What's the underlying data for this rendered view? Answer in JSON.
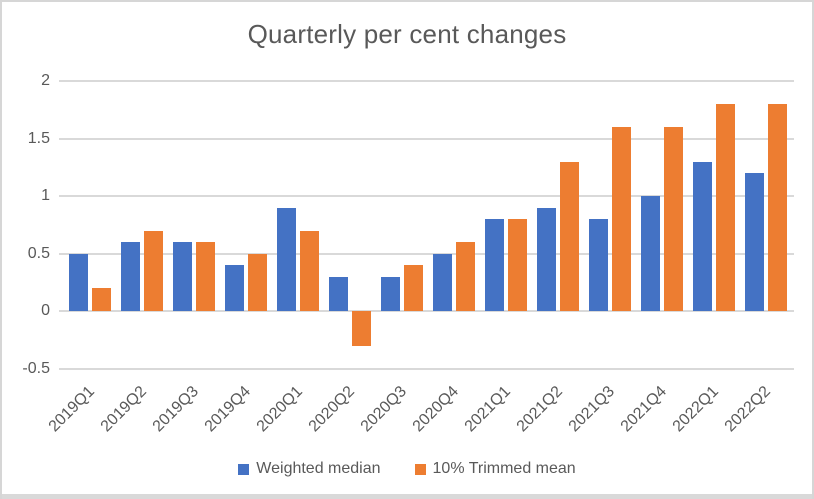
{
  "frame": {
    "border_color": "#d6d6d6",
    "bottom_strip_color": "#d9d9d9"
  },
  "chart_data": {
    "type": "bar",
    "title": "Quarterly per cent changes",
    "categories": [
      "2019Q1",
      "2019Q2",
      "2019Q3",
      "2019Q4",
      "2020Q1",
      "2020Q2",
      "2020Q3",
      "2020Q4",
      "2021Q1",
      "2021Q2",
      "2021Q3",
      "2021Q4",
      "2022Q1",
      "2022Q2"
    ],
    "series": [
      {
        "name": "Weighted median",
        "color": "#4472C4",
        "values": [
          0.5,
          0.6,
          0.6,
          0.4,
          0.9,
          0.3,
          0.3,
          0.5,
          0.8,
          0.9,
          0.8,
          1.0,
          1.3,
          1.2
        ]
      },
      {
        "name": "10% Trimmed mean",
        "color": "#ED7D31",
        "values": [
          0.2,
          0.7,
          0.6,
          0.5,
          0.7,
          -0.3,
          0.4,
          0.6,
          0.8,
          1.3,
          1.6,
          1.6,
          1.8,
          1.8
        ]
      }
    ],
    "xlabel": "",
    "ylabel": "",
    "ylim": [
      -0.5,
      2
    ],
    "ytick_values": [
      2,
      1.5,
      1,
      0.5,
      0,
      -0.5
    ],
    "ytick_labels": [
      "2",
      "1.5",
      "1",
      "0.5",
      "0",
      "-0.5"
    ],
    "grid": true,
    "gridline_color": "#d9d9d9",
    "text_color": "#595959",
    "legend_position": "bottom"
  }
}
